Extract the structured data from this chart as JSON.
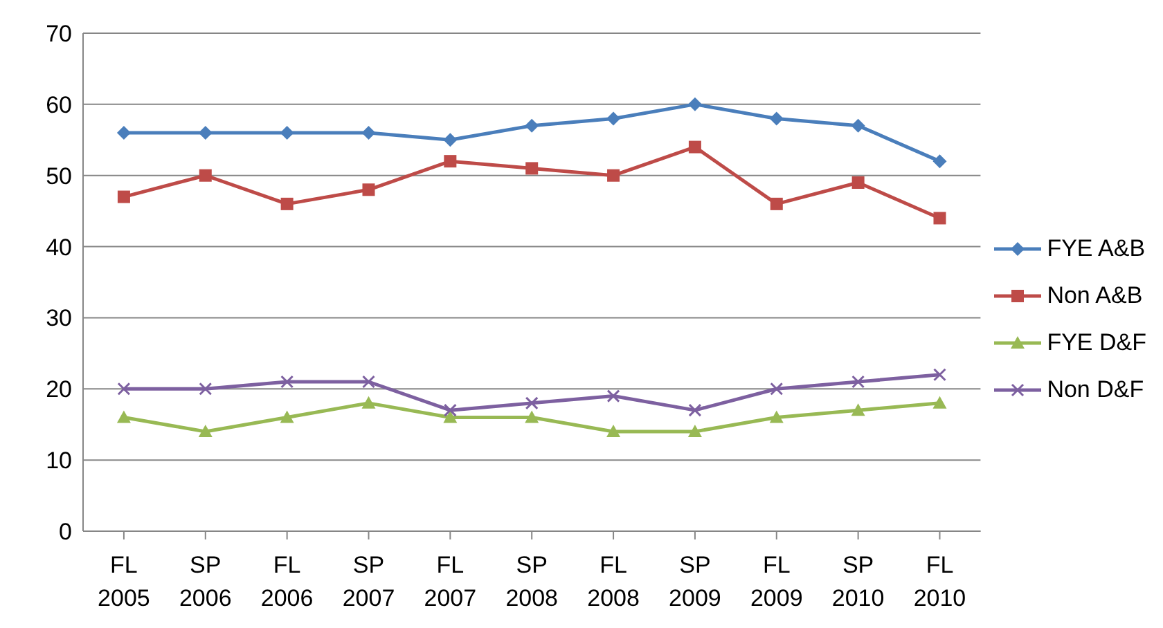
{
  "chart_data": {
    "type": "line",
    "categories": [
      "FL 2005",
      "SP 2006",
      "FL 2006",
      "SP 2007",
      "FL 2007",
      "SP 2008",
      "FL 2008",
      "SP 2009",
      "FL 2009",
      "SP 2010",
      "FL 2010"
    ],
    "series": [
      {
        "name": "FYE A&B",
        "color": "#4a7ebb",
        "marker": "diamond",
        "values": [
          56,
          56,
          56,
          56,
          55,
          57,
          58,
          60,
          58,
          57,
          52
        ]
      },
      {
        "name": "Non A&B",
        "color": "#be4b48",
        "marker": "square",
        "values": [
          47,
          50,
          46,
          48,
          52,
          51,
          50,
          54,
          46,
          49,
          44
        ]
      },
      {
        "name": "FYE D&F",
        "color": "#98b954",
        "marker": "triangle",
        "values": [
          16,
          14,
          16,
          18,
          16,
          16,
          14,
          14,
          16,
          17,
          18
        ]
      },
      {
        "name": "Non D&F",
        "color": "#7d60a0",
        "marker": "cross",
        "values": [
          20,
          20,
          21,
          21,
          17,
          18,
          19,
          17,
          20,
          21,
          22
        ]
      }
    ],
    "ylim": [
      0,
      70
    ],
    "yticks": [
      0,
      10,
      20,
      30,
      40,
      50,
      60,
      70
    ],
    "grid": "y",
    "legend": "right",
    "line_style": "solid"
  }
}
